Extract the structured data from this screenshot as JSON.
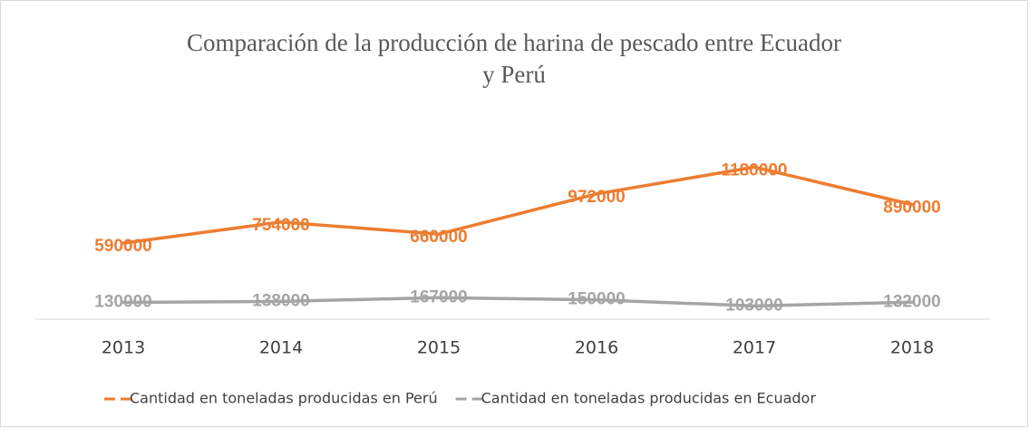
{
  "chart_data": {
    "type": "line",
    "title": "Comparación de la producción de harina de pescado entre Ecuador y Perú",
    "categories": [
      "2013",
      "2014",
      "2015",
      "2016",
      "2017",
      "2018"
    ],
    "series": [
      {
        "name": "Cantidad en toneladas producidas en Perú",
        "color": "#ed7d31",
        "values": [
          590000,
          754000,
          660000,
          972000,
          1180000,
          890000
        ]
      },
      {
        "name": "Cantidad en toneladas producidas en Ecuador",
        "color": "#a5a5a5",
        "values": [
          130000,
          138000,
          167000,
          150000,
          103000,
          132000
        ]
      }
    ],
    "ylim": [
      0,
      1400000
    ],
    "legend": "bottom",
    "data_labels": true
  }
}
